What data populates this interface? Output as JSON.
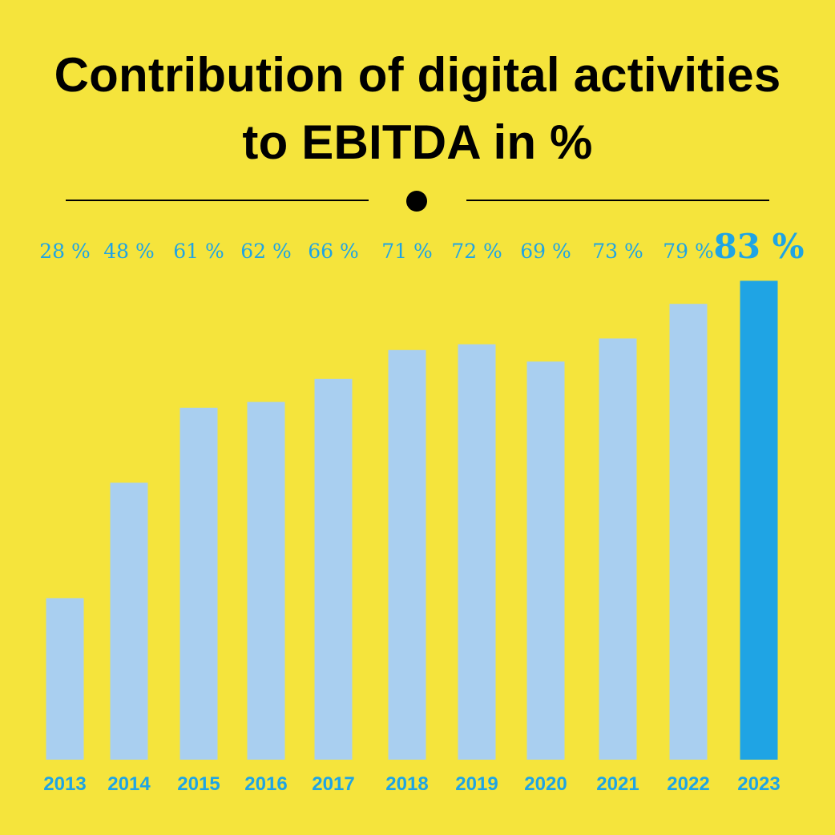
{
  "title": {
    "line1": "Contribution of digital activities",
    "line2": "to EBITDA in %"
  },
  "colors": {
    "background": "#f5e43c",
    "bar": "#a9cff0",
    "highlight_bar": "#1fa4e4",
    "label": "#1fa4e4",
    "title": "#000000"
  },
  "chart_data": {
    "type": "bar",
    "title": "Contribution of digital activities to EBITDA in %",
    "categories": [
      "2013",
      "2014",
      "2015",
      "2016",
      "2017",
      "2018",
      "2019",
      "2020",
      "2021",
      "2022",
      "2023"
    ],
    "values": [
      28,
      48,
      61,
      62,
      66,
      71,
      72,
      69,
      73,
      79,
      83
    ],
    "value_labels": [
      "28 %",
      "48 %",
      "61 %",
      "62 %",
      "66 %",
      "71 %",
      "72 %",
      "69 %",
      "73 %",
      "79 %",
      "83 %"
    ],
    "highlight": "2023",
    "ylim": [
      0,
      100
    ],
    "grid": false,
    "legend": "none",
    "xlabel": "",
    "ylabel": ""
  }
}
